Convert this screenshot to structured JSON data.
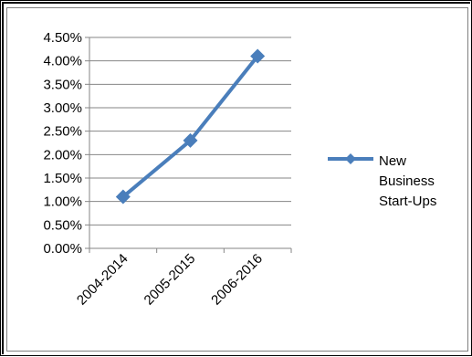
{
  "chart_data": {
    "type": "line",
    "categories": [
      "2004-2014",
      "2005-2015",
      "2006-2016"
    ],
    "series": [
      {
        "name": "New Business Start-Ups",
        "values": [
          1.1,
          2.3,
          4.1
        ],
        "color": "#4a7ebb"
      }
    ],
    "y_ticks": [
      "0.00%",
      "0.50%",
      "1.00%",
      "1.50%",
      "2.00%",
      "2.50%",
      "3.00%",
      "3.50%",
      "4.00%",
      "4.50%"
    ],
    "ylim": [
      0,
      4.5
    ],
    "y_unit": "%",
    "grid": true,
    "legend_position": "right",
    "legend_lines": [
      "New",
      "Business",
      "Start-Ups"
    ],
    "marker": "diamond"
  }
}
